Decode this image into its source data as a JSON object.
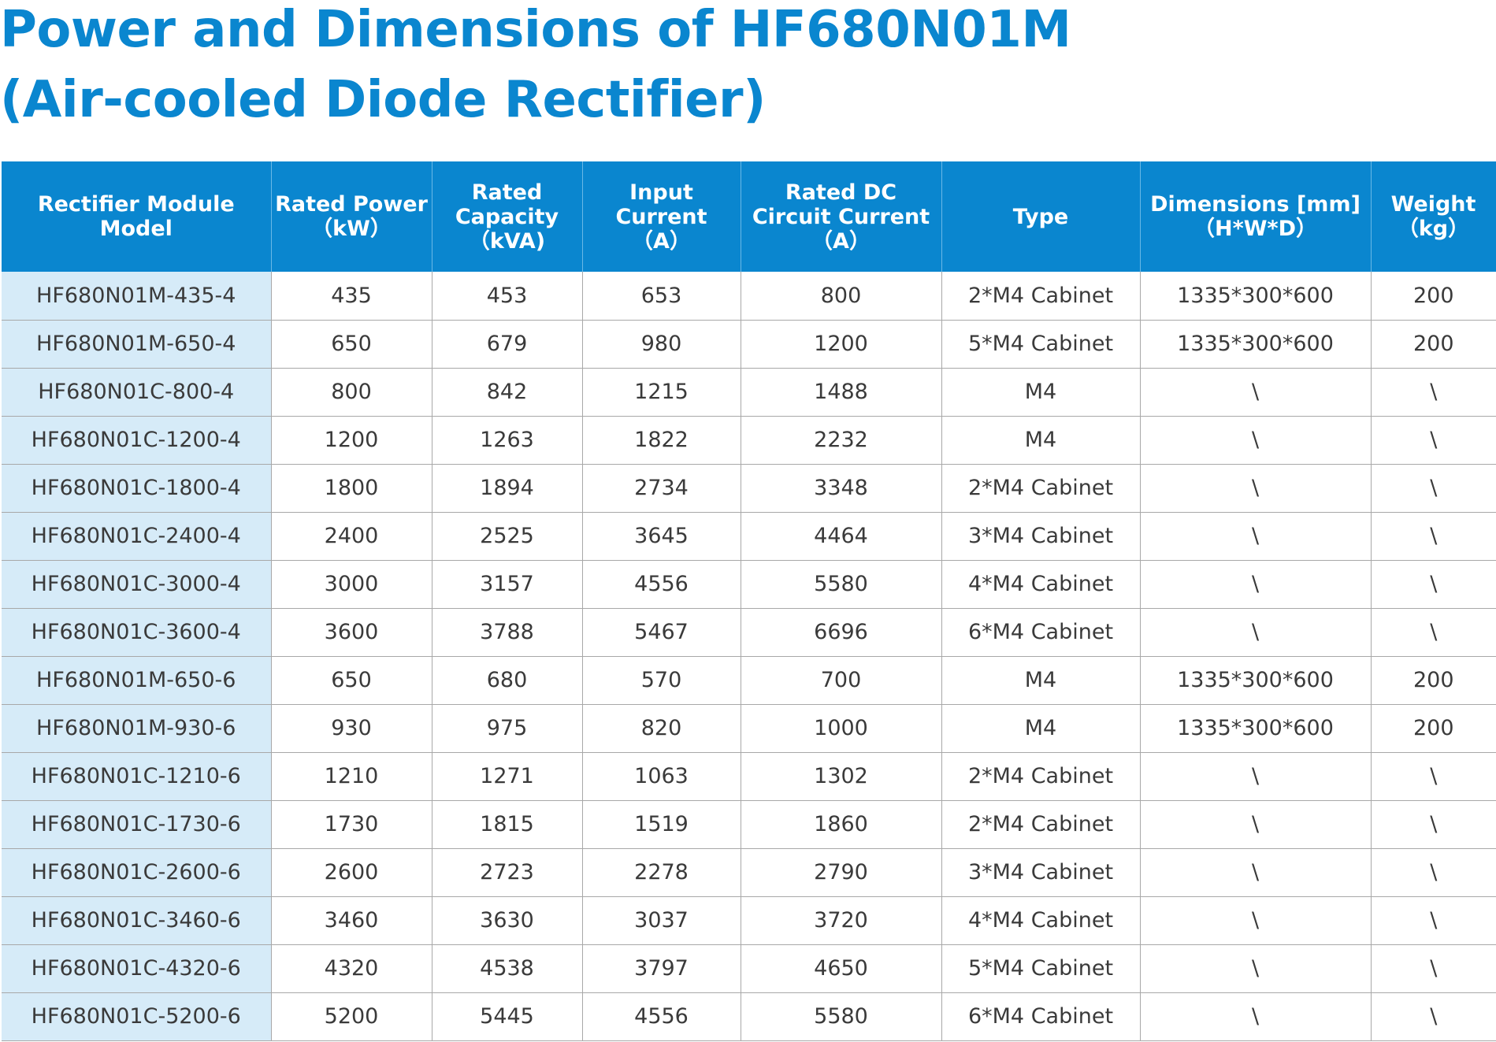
{
  "title": {
    "line1": "Power and Dimensions of HF680N01M",
    "line2": "(Air-cooled Diode Rectifier)"
  },
  "table": {
    "headers": [
      [
        "Rectifier Module",
        "Model"
      ],
      [
        "Rated Power",
        "（kW）"
      ],
      [
        "Rated",
        "Capacity",
        "（kVA)"
      ],
      [
        "Input",
        "Current",
        "（A）"
      ],
      [
        "Rated DC",
        "Circuit Current",
        "（A）"
      ],
      [
        "Type"
      ],
      [
        "Dimensions [mm]",
        "（H*W*D）"
      ],
      [
        "Weight",
        "（kg）"
      ]
    ],
    "rows": [
      [
        "HF680N01M-435-4",
        "435",
        "453",
        "653",
        "800",
        "2*M4 Cabinet",
        "1335*300*600",
        "200"
      ],
      [
        "HF680N01M-650-4",
        "650",
        "679",
        "980",
        "1200",
        "5*M4 Cabinet",
        "1335*300*600",
        "200"
      ],
      [
        "HF680N01C-800-4",
        "800",
        "842",
        "1215",
        "1488",
        "M4",
        "\\",
        "\\"
      ],
      [
        "HF680N01C-1200-4",
        "1200",
        "1263",
        "1822",
        "2232",
        "M4",
        "\\",
        "\\"
      ],
      [
        "HF680N01C-1800-4",
        "1800",
        "1894",
        "2734",
        "3348",
        "2*M4 Cabinet",
        "\\",
        "\\"
      ],
      [
        "HF680N01C-2400-4",
        "2400",
        "2525",
        "3645",
        "4464",
        "3*M4 Cabinet",
        "\\",
        "\\"
      ],
      [
        "HF680N01C-3000-4",
        "3000",
        "3157",
        "4556",
        "5580",
        "4*M4 Cabinet",
        "\\",
        "\\"
      ],
      [
        "HF680N01C-3600-4",
        "3600",
        "3788",
        "5467",
        "6696",
        "6*M4 Cabinet",
        "\\",
        "\\"
      ],
      [
        "HF680N01M-650-6",
        "650",
        "680",
        "570",
        "700",
        "M4",
        "1335*300*600",
        "200"
      ],
      [
        "HF680N01M-930-6",
        "930",
        "975",
        "820",
        "1000",
        "M4",
        "1335*300*600",
        "200"
      ],
      [
        "HF680N01C-1210-6",
        "1210",
        "1271",
        "1063",
        "1302",
        "2*M4 Cabinet",
        "\\",
        "\\"
      ],
      [
        "HF680N01C-1730-6",
        "1730",
        "1815",
        "1519",
        "1860",
        "2*M4 Cabinet",
        "\\",
        "\\"
      ],
      [
        "HF680N01C-2600-6",
        "2600",
        "2723",
        "2278",
        "2790",
        "3*M4 Cabinet",
        "\\",
        "\\"
      ],
      [
        "HF680N01C-3460-6",
        "3460",
        "3630",
        "3037",
        "3720",
        "4*M4 Cabinet",
        "\\",
        "\\"
      ],
      [
        "HF680N01C-4320-6",
        "4320",
        "4538",
        "3797",
        "4650",
        "5*M4 Cabinet",
        "\\",
        "\\"
      ],
      [
        "HF680N01C-5200-6",
        "5200",
        "5445",
        "4556",
        "5580",
        "6*M4 Cabinet",
        "\\",
        "\\"
      ]
    ]
  },
  "colors": {
    "title": "#0a86cf",
    "header_bg": "#0a86cf",
    "header_text": "#ffffff",
    "model_column_bg": "#d6ebf8",
    "grid": "#a8a8a8",
    "cell_text": "#3a3a3a"
  }
}
